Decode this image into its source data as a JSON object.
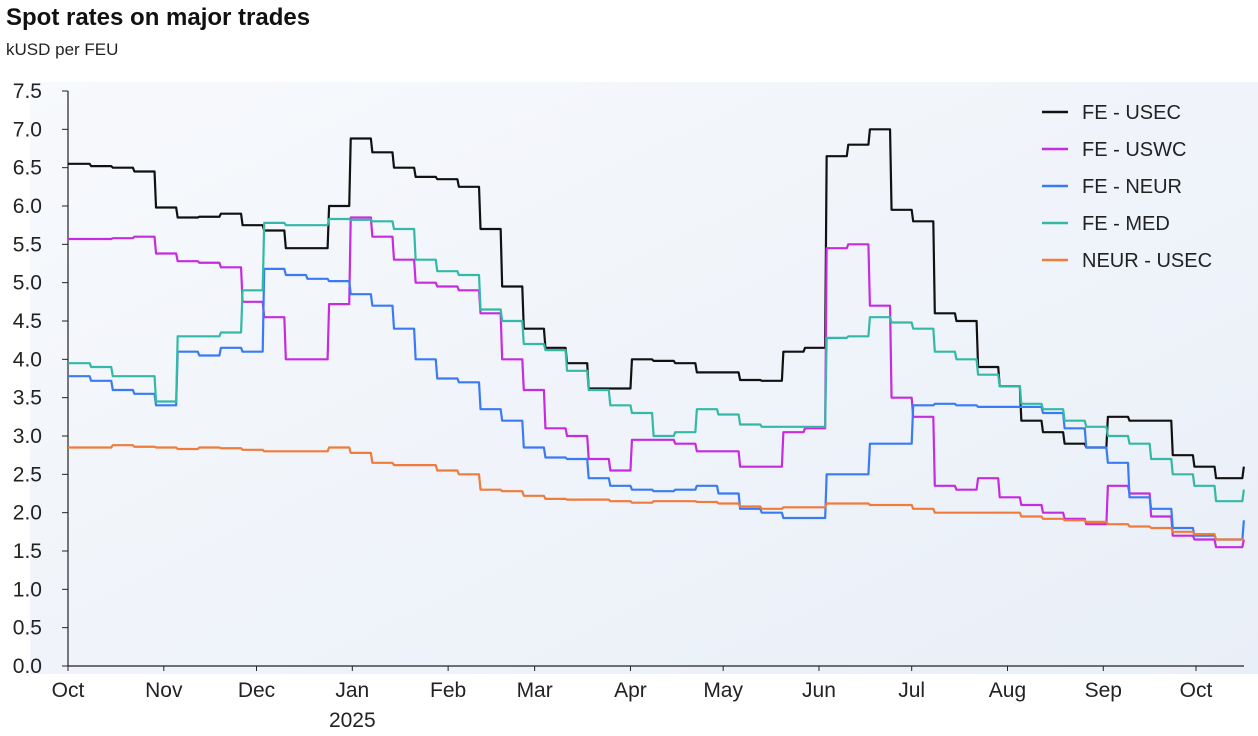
{
  "chart_data": {
    "type": "line",
    "title": "Spot rates on major trades",
    "subtitle": "kUSD per FEU",
    "ylim": [
      0,
      7.5
    ],
    "yticks": [
      "0.0",
      "0.5",
      "1.0",
      "1.5",
      "2.0",
      "2.5",
      "3.0",
      "3.5",
      "4.0",
      "4.5",
      "5.0",
      "5.5",
      "6.0",
      "6.5",
      "7.0",
      "7.5"
    ],
    "xticks": [
      {
        "date": "2024-10-01",
        "label": "Oct"
      },
      {
        "date": "2024-11-01",
        "label": "Nov"
      },
      {
        "date": "2024-12-01",
        "label": "Dec"
      },
      {
        "date": "2025-01-01",
        "label": "Jan",
        "sublabel": "2025"
      },
      {
        "date": "2025-02-01",
        "label": "Feb"
      },
      {
        "date": "2025-03-01",
        "label": "Mar"
      },
      {
        "date": "2025-04-01",
        "label": "Apr"
      },
      {
        "date": "2025-05-01",
        "label": "May"
      },
      {
        "date": "2025-06-01",
        "label": "Jun"
      },
      {
        "date": "2025-07-01",
        "label": "Jul"
      },
      {
        "date": "2025-08-01",
        "label": "Aug"
      },
      {
        "date": "2025-09-01",
        "label": "Sep"
      },
      {
        "date": "2025-10-01",
        "label": "Oct"
      }
    ],
    "grid": false,
    "legend_position": "top-right",
    "x": [
      "2024-10-01",
      "2024-10-08",
      "2024-10-15",
      "2024-10-22",
      "2024-10-29",
      "2024-11-05",
      "2024-11-12",
      "2024-11-19",
      "2024-11-26",
      "2024-12-03",
      "2024-12-10",
      "2024-12-17",
      "2024-12-24",
      "2024-12-31",
      "2025-01-07",
      "2025-01-14",
      "2025-01-21",
      "2025-01-28",
      "2025-02-04",
      "2025-02-11",
      "2025-02-18",
      "2025-02-25",
      "2025-03-04",
      "2025-03-11",
      "2025-03-18",
      "2025-03-25",
      "2025-04-01",
      "2025-04-08",
      "2025-04-15",
      "2025-04-22",
      "2025-04-29",
      "2025-05-06",
      "2025-05-13",
      "2025-05-20",
      "2025-05-27",
      "2025-06-03",
      "2025-06-10",
      "2025-06-17",
      "2025-06-24",
      "2025-07-01",
      "2025-07-08",
      "2025-07-15",
      "2025-07-22",
      "2025-07-29",
      "2025-08-05",
      "2025-08-12",
      "2025-08-19",
      "2025-08-26",
      "2025-09-02",
      "2025-09-09",
      "2025-09-16",
      "2025-09-23",
      "2025-09-30",
      "2025-10-07",
      "2025-10-14",
      "2025-10-16"
    ],
    "series": [
      {
        "name": "FE - USEC",
        "color": "#111111",
        "values": [
          6.55,
          6.52,
          6.5,
          6.45,
          5.98,
          5.85,
          5.86,
          5.9,
          5.75,
          5.68,
          5.45,
          5.45,
          6.0,
          6.88,
          6.7,
          6.5,
          6.38,
          6.35,
          6.25,
          5.7,
          4.95,
          4.4,
          4.15,
          3.95,
          3.62,
          3.62,
          4.0,
          3.98,
          3.95,
          3.83,
          3.83,
          3.73,
          3.72,
          4.1,
          4.15,
          6.65,
          6.8,
          7.0,
          5.95,
          5.8,
          4.6,
          4.5,
          3.9,
          3.65,
          3.2,
          3.05,
          2.9,
          2.85,
          3.25,
          3.2,
          3.2,
          2.75,
          2.6,
          2.45,
          2.45,
          2.6
        ]
      },
      {
        "name": "FE - USWC",
        "color": "#c62be0",
        "values": [
          5.57,
          5.57,
          5.58,
          5.6,
          5.38,
          5.28,
          5.26,
          5.2,
          4.75,
          4.55,
          4.0,
          4.0,
          4.72,
          5.85,
          5.6,
          5.3,
          5.0,
          4.95,
          4.9,
          4.6,
          4.0,
          3.6,
          3.1,
          3.0,
          2.7,
          2.55,
          2.95,
          2.95,
          2.9,
          2.8,
          2.8,
          2.6,
          2.6,
          3.05,
          3.1,
          5.45,
          5.5,
          4.7,
          3.5,
          3.25,
          2.35,
          2.3,
          2.45,
          2.2,
          2.1,
          2.0,
          1.92,
          1.85,
          2.35,
          2.25,
          1.95,
          1.7,
          1.65,
          1.55,
          1.55,
          1.65
        ]
      },
      {
        "name": "FE - NEUR",
        "color": "#3a7bf5",
        "values": [
          3.78,
          3.72,
          3.6,
          3.55,
          3.4,
          4.1,
          4.05,
          4.15,
          4.1,
          5.18,
          5.1,
          5.05,
          5.02,
          4.85,
          4.7,
          4.4,
          4.0,
          3.75,
          3.7,
          3.35,
          3.2,
          2.85,
          2.72,
          2.7,
          2.45,
          2.35,
          2.3,
          2.28,
          2.3,
          2.35,
          2.25,
          2.05,
          2.0,
          1.93,
          1.93,
          2.5,
          2.5,
          2.9,
          2.9,
          3.4,
          3.42,
          3.4,
          3.38,
          3.38,
          3.38,
          3.3,
          3.1,
          2.85,
          2.65,
          2.2,
          2.05,
          1.8,
          1.7,
          1.65,
          1.65,
          1.9
        ]
      },
      {
        "name": "FE - MED",
        "color": "#33b9a5",
        "values": [
          3.95,
          3.9,
          3.78,
          3.78,
          3.45,
          4.3,
          4.3,
          4.35,
          4.9,
          5.78,
          5.75,
          5.75,
          5.83,
          5.82,
          5.8,
          5.7,
          5.3,
          5.15,
          5.1,
          4.65,
          4.5,
          4.2,
          4.12,
          3.85,
          3.6,
          3.4,
          3.3,
          3.0,
          3.05,
          3.35,
          3.28,
          3.15,
          3.12,
          3.12,
          3.12,
          4.28,
          4.3,
          4.55,
          4.48,
          4.4,
          4.1,
          4.0,
          3.8,
          3.65,
          3.42,
          3.35,
          3.2,
          3.12,
          3.0,
          2.9,
          2.7,
          2.5,
          2.35,
          2.15,
          2.15,
          2.3
        ]
      },
      {
        "name": "NEUR - USEC",
        "color": "#f07b3a",
        "values": [
          2.85,
          2.85,
          2.88,
          2.86,
          2.85,
          2.83,
          2.85,
          2.84,
          2.82,
          2.8,
          2.8,
          2.8,
          2.85,
          2.78,
          2.65,
          2.62,
          2.62,
          2.55,
          2.5,
          2.3,
          2.28,
          2.22,
          2.18,
          2.17,
          2.17,
          2.15,
          2.13,
          2.15,
          2.15,
          2.14,
          2.12,
          2.08,
          2.05,
          2.07,
          2.07,
          2.12,
          2.12,
          2.1,
          2.1,
          2.05,
          2.0,
          2.0,
          2.0,
          2.0,
          1.95,
          1.92,
          1.9,
          1.88,
          1.85,
          1.82,
          1.8,
          1.75,
          1.72,
          1.65,
          1.65,
          1.65
        ]
      }
    ]
  }
}
